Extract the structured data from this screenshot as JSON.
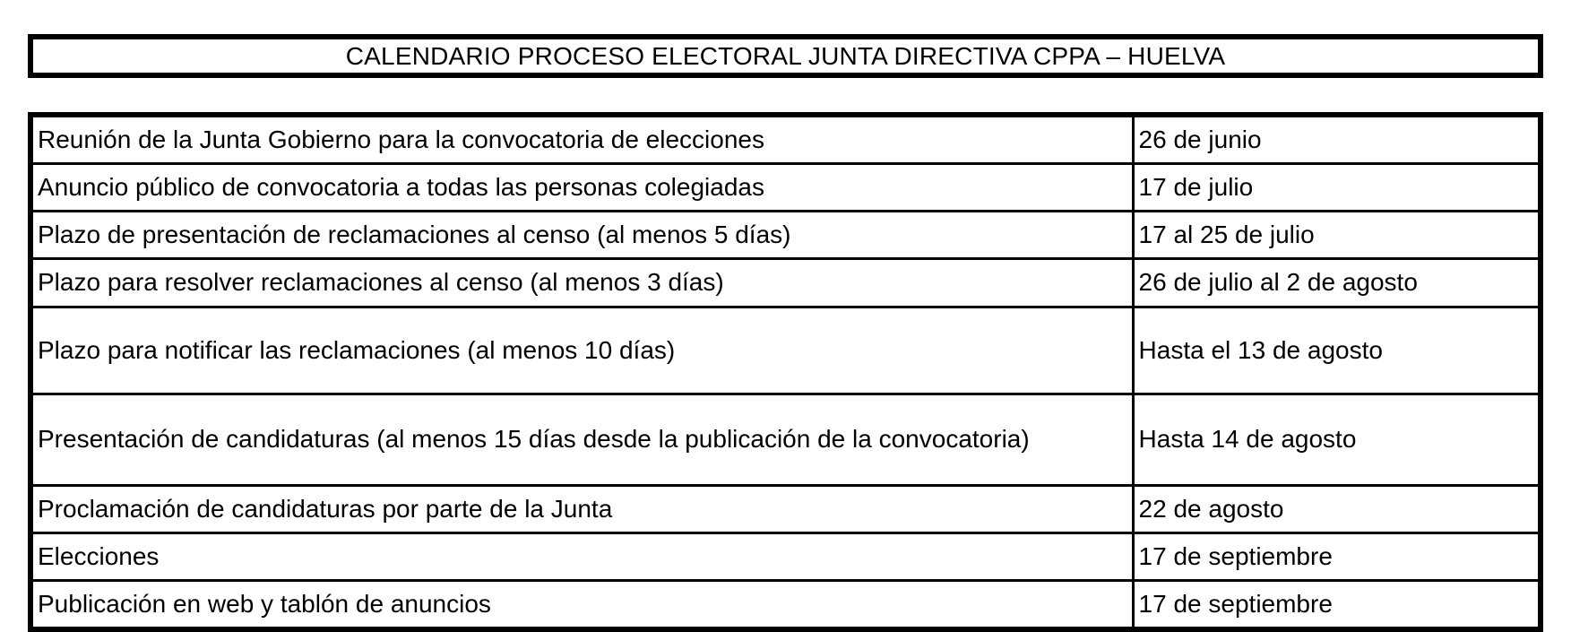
{
  "title": "CALENDARIO PROCESO ELECTORAL JUNTA DIRECTIVA CPPA – HUELVA",
  "calendar": {
    "rows": [
      {
        "activity": "Reunión de la Junta Gobierno para la convocatoria de elecciones",
        "date": "26 de junio"
      },
      {
        "activity": "Anuncio público de convocatoria a todas las personas colegiadas",
        "date": "17 de julio"
      },
      {
        "activity": "Plazo de presentación de reclamaciones al censo (al menos 5 días)",
        "date": "17 al 25 de julio"
      },
      {
        "activity": "Plazo para resolver reclamaciones al censo (al menos 3 días)",
        "date": "26 de julio al 2 de agosto"
      },
      {
        "activity": "Plazo para notificar las reclamaciones (al menos 10 días)",
        "date": "Hasta el 13 de agosto"
      },
      {
        "activity": "Presentación de candidaturas (al menos 15 días desde la publicación de la convocatoria)",
        "date": "Hasta 14 de agosto"
      },
      {
        "activity": "Proclamación de candidaturas por parte de la Junta",
        "date": "22 de agosto"
      },
      {
        "activity": "Elecciones",
        "date": "17 de septiembre"
      },
      {
        "activity": "Publicación en web y tablón de anuncios",
        "date": "17 de septiembre"
      }
    ]
  },
  "colors": {
    "border": "#000000",
    "text": "#000000",
    "background": "#ffffff"
  }
}
